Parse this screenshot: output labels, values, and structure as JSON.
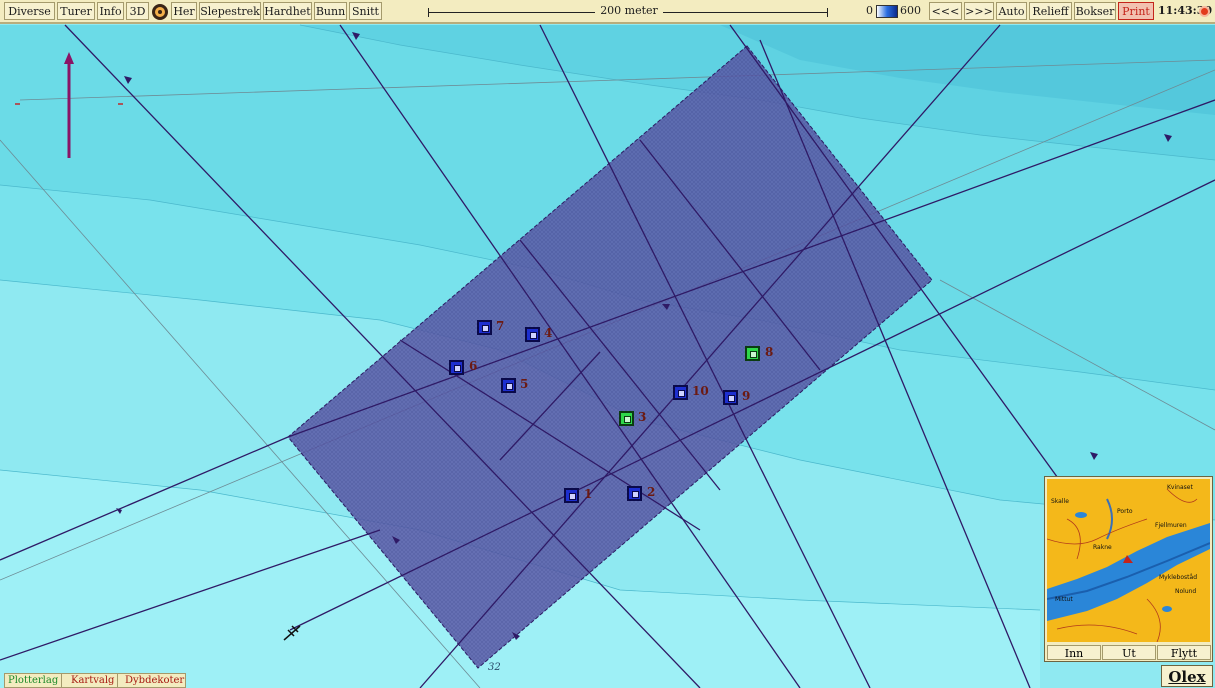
{
  "toolbar": {
    "buttons": [
      "Diverse",
      "Turer",
      "Info",
      "3D",
      "Her",
      "Slepestrek",
      "Hardhet",
      "Bunn",
      "Snitt"
    ],
    "scale_label": "200 meter",
    "depth_min": "0",
    "depth_max": "600",
    "right_buttons": [
      "<<<",
      ">>>",
      "Auto",
      "Relieff",
      "Bokser",
      "Print"
    ],
    "clock": "11:43:30"
  },
  "markers": [
    {
      "label": "1",
      "style": "blue"
    },
    {
      "label": "2",
      "style": "blue"
    },
    {
      "label": "3",
      "style": "green"
    },
    {
      "label": "4",
      "style": "blue"
    },
    {
      "label": "5",
      "style": "blue"
    },
    {
      "label": "6",
      "style": "blue"
    },
    {
      "label": "7",
      "style": "blue"
    },
    {
      "label": "8",
      "style": "green"
    },
    {
      "label": "9",
      "style": "blue"
    },
    {
      "label": "10",
      "style": "blue"
    }
  ],
  "depth_contour_label": "32",
  "bottom_tabs": [
    "Plotterlag",
    "Kartvalg",
    "Dybdekoter"
  ],
  "minimap": {
    "buttons": [
      "Inn",
      "Ut",
      "Flytt"
    ],
    "place_names": [
      "Skalle",
      "Fjellmuren",
      "Rakne",
      "Mykleboståd",
      "Nolund",
      "Mittut",
      "Porto",
      "Kvinaset"
    ]
  },
  "brand": "Olex",
  "colors": {
    "sea_light": "#8fe9f1",
    "sea_mid": "#6fdfe9",
    "sea_deep": "#56cfe0",
    "box_fill": "#5a4f9a",
    "track_line": "#3a1f6b",
    "marker_blue": "#1d2fd0",
    "marker_green": "#2ed84a",
    "toolbar_bg": "#f3ecc0",
    "print_red": "#c4241a"
  }
}
